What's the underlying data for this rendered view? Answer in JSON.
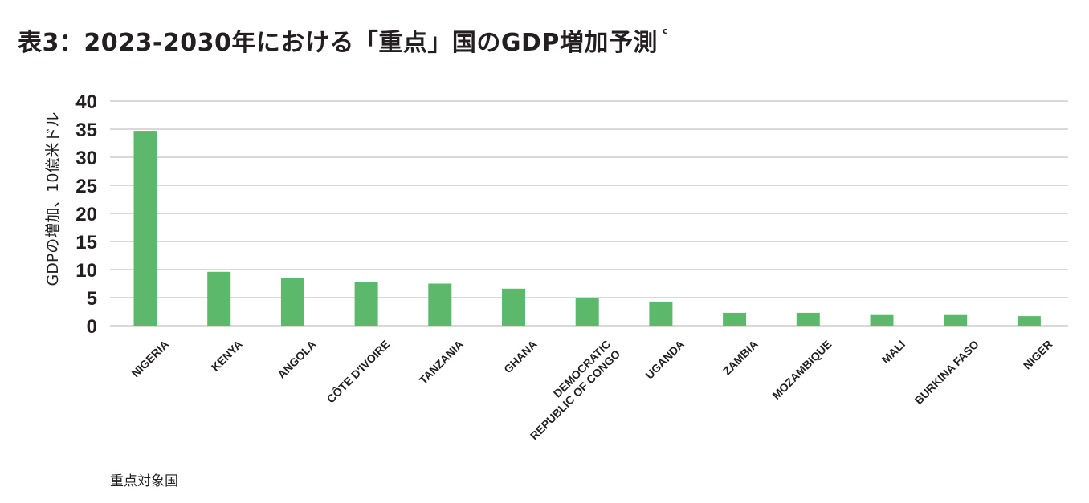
{
  "title": "表3：2023-2030年における「重点」国のGDP増加予測",
  "title_note": "c",
  "colors": {
    "bar": "#5cb86a",
    "grid": "#d9d9d9",
    "text": "#231f20"
  },
  "chart_data": {
    "type": "bar",
    "title": "表3：2023-2030年における「重点」国のGDP増加予測",
    "xlabel": "重点対象国",
    "ylabel": "GDPの増加、10億米ドル",
    "ylim": [
      0,
      40
    ],
    "yticks": [
      0,
      5,
      10,
      15,
      20,
      25,
      30,
      35,
      40
    ],
    "grid": true,
    "categories": [
      "NIGERIA",
      "KENYA",
      "ANGOLA",
      "CÔTE D'IVOIRE",
      "TANZANIA",
      "GHANA",
      "DEMOCRATIC REPUBLIC OF CONGO",
      "UGANDA",
      "ZAMBIA",
      "MOZAMBIQUE",
      "MALI",
      "BURKINA FASO",
      "NIGER"
    ],
    "category_lines": [
      [
        "NIGERIA"
      ],
      [
        "KENYA"
      ],
      [
        "ANGOLA"
      ],
      [
        "CÔTE D'IVOIRE"
      ],
      [
        "TANZANIA"
      ],
      [
        "GHANA"
      ],
      [
        "DEMOCRATIC",
        "REPUBLIC OF CONGO"
      ],
      [
        "UGANDA"
      ],
      [
        "ZAMBIA"
      ],
      [
        "MOZAMBIQUE"
      ],
      [
        "MALI"
      ],
      [
        "BURKINA FASO"
      ],
      [
        "NIGER"
      ]
    ],
    "values": [
      34.7,
      9.6,
      8.5,
      7.8,
      7.5,
      6.6,
      5.0,
      4.3,
      2.3,
      2.3,
      1.9,
      1.9,
      1.7
    ]
  }
}
